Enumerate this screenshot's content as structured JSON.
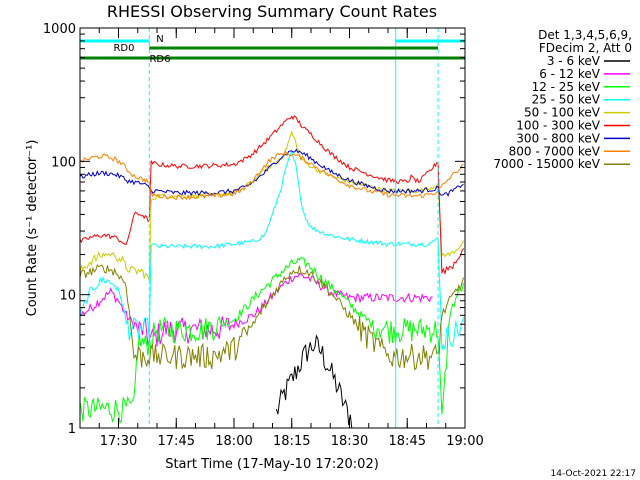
{
  "chart_data": {
    "type": "line",
    "title": "RHESSI Observing Summary Count Rates",
    "xlabel": "Start Time (17-May-10 17:20:02)",
    "ylabel": "Count Rate (s⁻¹ detector⁻¹)",
    "y_scale": "log",
    "ylim": [
      1,
      1000
    ],
    "xlim_minutes_after_1720": [
      0,
      100
    ],
    "x_ticks": [
      "17:30",
      "17:45",
      "18:00",
      "18:15",
      "18:30",
      "18:45",
      "19:00"
    ],
    "y_ticks": [
      "1",
      "10",
      "100",
      "1000"
    ],
    "legend_header": [
      "Det 1,3,4,5,6,9,",
      "FDecim 2, Att 0"
    ],
    "series": [
      {
        "name": "3 - 6 keV",
        "color": "#000000",
        "x": [
          0,
          18,
          18.01,
          48,
          51,
          53,
          55,
          57,
          59,
          61,
          63,
          65,
          67,
          69,
          71,
          73,
          100
        ],
        "y": [
          null,
          null,
          null,
          null,
          1.3,
          1.8,
          2.3,
          3.0,
          3.8,
          4.3,
          3.6,
          2.7,
          2.0,
          1.4,
          1.1,
          null,
          null
        ]
      },
      {
        "name": "6 - 12 keV",
        "color": "#ff00ff",
        "x": [
          0,
          3,
          6,
          8,
          10,
          12,
          15,
          17,
          18,
          20,
          22,
          25,
          30,
          35,
          40,
          45,
          48,
          51,
          53,
          55,
          57,
          59,
          61,
          63,
          65,
          67,
          70,
          72,
          75,
          80,
          85,
          90,
          92
        ],
        "y": [
          7,
          8,
          9.5,
          10.5,
          9,
          7,
          5.5,
          5.5,
          4.5,
          5,
          5.5,
          5.5,
          5.5,
          5.5,
          6,
          7,
          8.5,
          10.5,
          12,
          13.5,
          14,
          13.5,
          12.5,
          11.5,
          10.5,
          10,
          9.5,
          9.5,
          9.5,
          9.5,
          9.5,
          9.5,
          9.5
        ]
      },
      {
        "name": "12 - 25 keV",
        "color": "#00ff00",
        "x": [
          0,
          5,
          10,
          14,
          15,
          17,
          18,
          20,
          25,
          30,
          35,
          40,
          43,
          46,
          49,
          52,
          55,
          57,
          59,
          61,
          63,
          65,
          67,
          70,
          73,
          76,
          80,
          85,
          90,
          93,
          94,
          96,
          98,
          100
        ],
        "y": [
          1.4,
          1.4,
          1.4,
          1.4,
          4.5,
          4.2,
          4.5,
          5.5,
          5.5,
          5.5,
          5.8,
          6.5,
          8,
          10,
          12,
          14.5,
          17,
          18,
          17,
          15,
          13,
          11.5,
          10.5,
          8.5,
          7,
          6,
          5.5,
          5.5,
          5.5,
          5.5,
          1.1,
          7,
          10,
          12
        ]
      },
      {
        "name": "25 - 50 keV",
        "color": "#00ffff",
        "x": [
          0,
          3,
          6,
          9,
          11,
          12,
          14,
          16,
          18,
          18.5,
          20,
          25,
          30,
          35,
          40,
          45,
          48,
          50,
          52,
          54,
          55,
          56,
          57,
          58,
          59,
          60,
          62,
          65,
          70,
          75,
          80,
          85,
          88,
          90,
          92,
          93,
          94,
          96,
          98,
          100
        ],
        "y": [
          7,
          11,
          13,
          12,
          9,
          6,
          5.5,
          5.5,
          5.5,
          24,
          23,
          23,
          23,
          23,
          24,
          25,
          28,
          40,
          60,
          100,
          115,
          95,
          60,
          42,
          36,
          32,
          30,
          28,
          26,
          25,
          24,
          24,
          24,
          24,
          25,
          27,
          4.5,
          5,
          5.5,
          6
        ]
      },
      {
        "name": "50 - 100 keV",
        "color": "#cccc00",
        "x": [
          0,
          3,
          6,
          9,
          11,
          12,
          14,
          16,
          17,
          18,
          18.5,
          20,
          25,
          30,
          35,
          40,
          43,
          45,
          47,
          49,
          51,
          53,
          54,
          55,
          56,
          57,
          58,
          60,
          62,
          65,
          70,
          75,
          80,
          85,
          88,
          90,
          92,
          93,
          94,
          96,
          98,
          100
        ],
        "y": [
          15,
          18,
          20,
          20,
          18,
          16,
          15,
          15,
          14,
          13,
          52,
          55,
          55,
          55,
          56,
          58,
          65,
          72,
          82,
          90,
          100,
          112,
          135,
          165,
          140,
          112,
          100,
          92,
          85,
          78,
          70,
          65,
          60,
          60,
          60,
          62,
          65,
          68,
          20,
          20,
          22,
          26
        ]
      },
      {
        "name": "100 - 300 keV",
        "color": "#ff0000",
        "x": [
          0,
          3,
          6,
          9,
          11,
          12,
          14,
          16,
          17,
          18,
          18.5,
          20,
          25,
          30,
          35,
          40,
          43,
          45,
          47,
          49,
          51,
          53,
          55,
          56,
          57,
          58,
          60,
          62,
          65,
          70,
          75,
          80,
          85,
          86,
          88,
          90,
          92,
          93,
          94,
          96,
          98,
          100
        ],
        "y": [
          25,
          27,
          28,
          27,
          25,
          23,
          40,
          40,
          38,
          36,
          98,
          95,
          92,
          92,
          93,
          95,
          105,
          115,
          130,
          148,
          170,
          195,
          218,
          210,
          195,
          178,
          160,
          140,
          115,
          90,
          80,
          72,
          70,
          76,
          70,
          80,
          92,
          100,
          15,
          16,
          18,
          24
        ]
      },
      {
        "name": "300 - 800 keV",
        "color": "#0000cc",
        "x": [
          0,
          3,
          6,
          9,
          11,
          12,
          14,
          16,
          17,
          18,
          18.5,
          20,
          25,
          30,
          35,
          40,
          43,
          45,
          47,
          49,
          51,
          53,
          55,
          57,
          59,
          61,
          63,
          65,
          70,
          75,
          80,
          85,
          88,
          90,
          92,
          93,
          94,
          96,
          98,
          100
        ],
        "y": [
          76,
          80,
          82,
          80,
          76,
          72,
          70,
          68,
          66,
          64,
          60,
          60,
          58,
          58,
          58,
          60,
          64,
          70,
          78,
          88,
          100,
          112,
          120,
          118,
          110,
          100,
          92,
          84,
          72,
          65,
          60,
          60,
          60,
          61,
          62,
          63,
          55,
          58,
          63,
          70
        ]
      },
      {
        "name": "800 - 7000 keV",
        "color": "#ff8000",
        "x": [
          0,
          3,
          6,
          9,
          11,
          12,
          14,
          16,
          17,
          18,
          18.5,
          20,
          25,
          30,
          35,
          40,
          43,
          45,
          47,
          49,
          51,
          53,
          55,
          57,
          59,
          61,
          63,
          65,
          70,
          75,
          80,
          85,
          88,
          90,
          92,
          93,
          94,
          96,
          98,
          100
        ],
        "y": [
          100,
          106,
          110,
          104,
          96,
          88,
          78,
          74,
          72,
          70,
          57,
          55,
          54,
          54,
          55,
          57,
          63,
          72,
          86,
          100,
          110,
          115,
          113,
          108,
          100,
          92,
          85,
          78,
          66,
          60,
          56,
          55,
          55,
          56,
          58,
          60,
          65,
          75,
          85,
          95
        ]
      },
      {
        "name": "7000 - 15000 keV",
        "color": "#808000",
        "x": [
          0,
          3,
          6,
          9,
          11,
          12,
          14,
          16,
          17,
          18,
          20,
          25,
          30,
          35,
          40,
          43,
          45,
          47,
          49,
          51,
          53,
          55,
          57,
          59,
          61,
          63,
          65,
          67,
          70,
          73,
          76,
          80,
          85,
          90,
          92,
          93,
          94,
          96,
          98,
          100
        ],
        "y": [
          14,
          15,
          16,
          15,
          13,
          12,
          3.5,
          3.5,
          3.5,
          3.5,
          3.5,
          3.5,
          3.5,
          3.5,
          4,
          5,
          6,
          7.5,
          9,
          11,
          13,
          15,
          15.5,
          15,
          13.5,
          12,
          10.5,
          9,
          7,
          5.5,
          4.5,
          3.5,
          3.5,
          3.5,
          3.5,
          3.5,
          7,
          9,
          11,
          13
        ]
      }
    ],
    "state_bars": [
      {
        "label": "N",
        "color": "#00ffff",
        "segments_minutes": [
          [
            0,
            18
          ],
          [
            82,
            100
          ]
        ]
      },
      {
        "label": "RD0",
        "color": "#008000",
        "segments_minutes": [
          [
            18,
            93
          ]
        ]
      },
      {
        "label": "RD6",
        "color": "#008000",
        "segments_minutes": [
          [
            0,
            18
          ],
          [
            18,
            93
          ],
          [
            93,
            100
          ]
        ]
      }
    ],
    "vertical_markers_minutes": [
      18,
      82,
      93,
      100
    ],
    "grid": false,
    "legend_position": "right"
  },
  "footer_timestamp": "14-Oct-2021 22:17"
}
